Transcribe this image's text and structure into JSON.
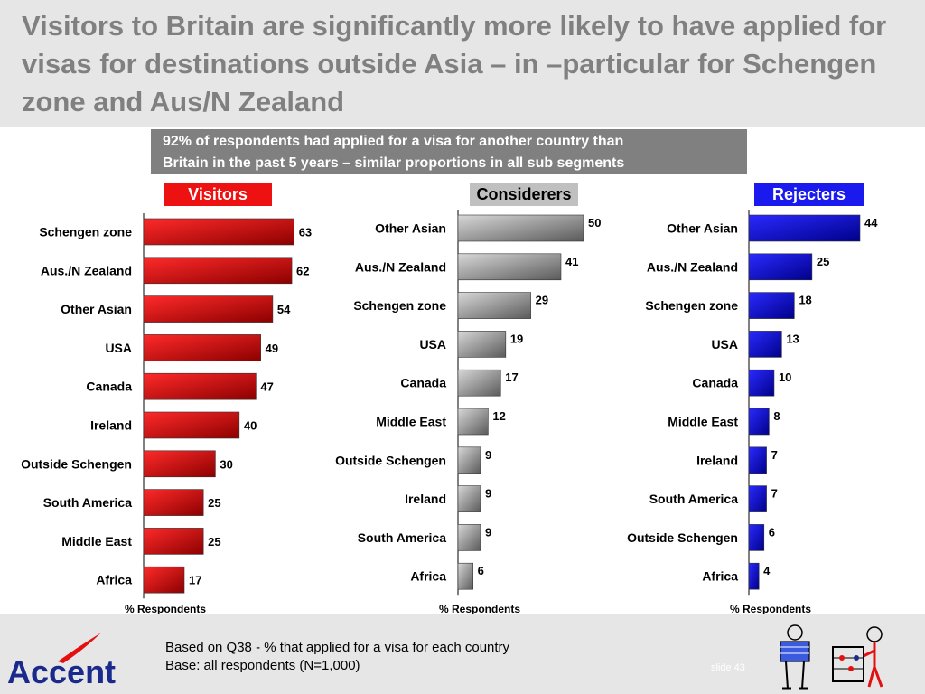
{
  "title": "Visitors to Britain are significantly more likely to have applied for visas for destinations outside Asia – in –particular for Schengen zone and Aus/N Zealand",
  "subtitle": {
    "line1": "92% of respondents had applied for a visa for another country than",
    "line2": "Britain in the past 5 years – similar proportions in all sub segments"
  },
  "footer": {
    "note_line1": "Based on Q38 - % that applied for a visa for each country",
    "note_line2": "Base: all respondents (N=1,000)",
    "slide_label": "slide 43",
    "logo_text": "Accent"
  },
  "colors": {
    "visitors": "#ee1111",
    "considerers": "#c0c0c0",
    "rejecters": "#1a1aee",
    "title_text": "#808080"
  },
  "chart_data": [
    {
      "type": "bar",
      "orientation": "horizontal",
      "title": "Visitors",
      "xlabel": "% Respondents",
      "categories": [
        "Schengen zone",
        "Aus./N Zealand",
        "Other Asian",
        "USA",
        "Canada",
        "Ireland",
        "Outside Schengen",
        "South America",
        "Middle East",
        "Africa"
      ],
      "values": [
        63,
        62,
        54,
        49,
        47,
        40,
        30,
        25,
        25,
        17
      ],
      "xlim": [
        0,
        65
      ],
      "color": "#ee1111"
    },
    {
      "type": "bar",
      "orientation": "horizontal",
      "title": "Considerers",
      "xlabel": "% Respondents",
      "categories": [
        "Other Asian",
        "Aus./N Zealand",
        "Schengen zone",
        "USA",
        "Canada",
        "Middle East",
        "Outside Schengen",
        "Ireland",
        "South America",
        "Africa"
      ],
      "values": [
        50,
        41,
        29,
        19,
        17,
        12,
        9,
        9,
        9,
        6
      ],
      "xlim": [
        0,
        50
      ],
      "color": "#a8a8a8"
    },
    {
      "type": "bar",
      "orientation": "horizontal",
      "title": "Rejecters",
      "xlabel": "% Respondents",
      "categories": [
        "Other Asian",
        "Aus./N Zealand",
        "Schengen zone",
        "USA",
        "Canada",
        "Middle East",
        "Ireland",
        "South America",
        "Outside Schengen",
        "Africa"
      ],
      "values": [
        44,
        25,
        18,
        13,
        10,
        8,
        7,
        7,
        6,
        4
      ],
      "xlim": [
        0,
        44
      ],
      "color": "#1a1aee"
    }
  ]
}
